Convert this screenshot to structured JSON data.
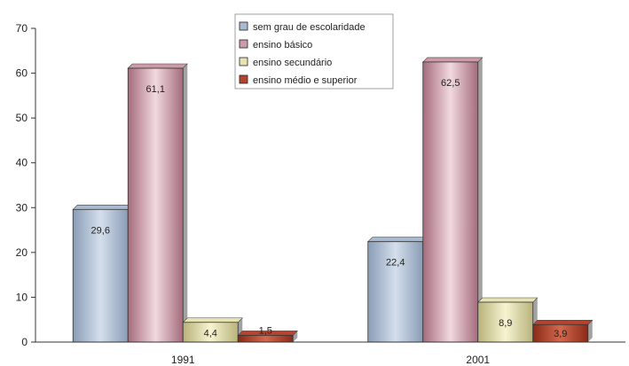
{
  "chart_data": {
    "type": "bar",
    "categories": [
      "1991",
      "2001"
    ],
    "series": [
      {
        "name": "sem grau de escolaridade",
        "values": [
          29.6,
          22.4
        ],
        "data_labels": [
          "29,6",
          "22,4"
        ],
        "color": "#a9b9cf"
      },
      {
        "name": "ensino básico",
        "values": [
          61.1,
          62.5
        ],
        "data_labels": [
          "61,1",
          "62,5"
        ],
        "color": "#cc9aa8"
      },
      {
        "name": "ensino secundário",
        "values": [
          4.4,
          8.9
        ],
        "data_labels": [
          "4,4",
          "8,9"
        ],
        "color": "#e6e2b2"
      },
      {
        "name": "ensino médio e superior",
        "values": [
          1.5,
          3.9
        ],
        "data_labels": [
          "1,5",
          "3,9"
        ],
        "color": "#b5442e"
      }
    ],
    "ylim": [
      0,
      70
    ],
    "yticks": [
      0,
      10,
      20,
      30,
      40,
      50,
      60,
      70
    ],
    "title": "",
    "xlabel": "",
    "ylabel": "",
    "grid": false,
    "legend_position": "top-center"
  }
}
